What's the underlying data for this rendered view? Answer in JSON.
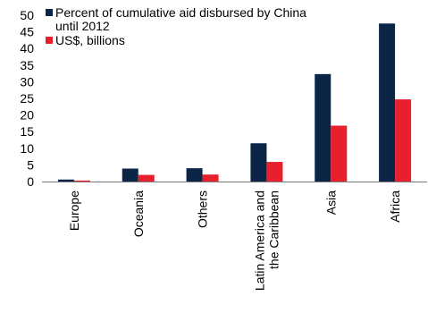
{
  "chart_data": {
    "type": "bar",
    "categories": [
      "Europe",
      "Oceania",
      "Others",
      "Latin America and the Caribbean",
      "Asia",
      "Africa"
    ],
    "category_lines": [
      [
        "Europe"
      ],
      [
        "Oceania"
      ],
      [
        "Others"
      ],
      [
        "Latin America and",
        "the Caribbean"
      ],
      [
        "Asia"
      ],
      [
        "Africa"
      ]
    ],
    "series": [
      {
        "name": "Percent of cumulative aid disbursed by China until 2012",
        "name_lines": [
          "Percent of cumulative aid disbursed by China",
          "until 2012"
        ],
        "color": "#0b2546",
        "values": [
          0.6,
          3.9,
          4.0,
          11.5,
          32.3,
          47.5
        ]
      },
      {
        "name": "US$, billions",
        "name_lines": [
          "US$, billions"
        ],
        "color": "#e8202e",
        "values": [
          0.3,
          2.0,
          2.1,
          5.9,
          16.8,
          24.7
        ]
      }
    ],
    "y_ticks": [
      "0",
      "5",
      "10",
      "15",
      "20",
      "25",
      "30",
      "35",
      "40",
      "45",
      "50"
    ],
    "ylim": [
      0,
      50
    ],
    "legend_position": "top-left",
    "grid": false
  }
}
